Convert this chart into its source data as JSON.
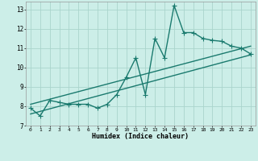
{
  "title": "",
  "xlabel": "Humidex (Indice chaleur)",
  "xlim": [
    -0.5,
    23.5
  ],
  "ylim": [
    7,
    13.4
  ],
  "yticks": [
    7,
    8,
    9,
    10,
    11,
    12,
    13
  ],
  "xticks": [
    0,
    1,
    2,
    3,
    4,
    5,
    6,
    7,
    8,
    9,
    10,
    11,
    12,
    13,
    14,
    15,
    16,
    17,
    18,
    19,
    20,
    21,
    22,
    23
  ],
  "bg_color": "#cceee8",
  "grid_color": "#aad4cc",
  "line_color": "#1a7a6e",
  "line_width": 1.0,
  "marker": "+",
  "marker_size": 4,
  "series": {
    "line1_x": [
      0,
      1,
      2,
      3,
      4,
      5,
      6,
      7,
      8,
      9,
      10,
      11,
      12,
      13,
      14,
      15,
      16,
      17,
      18,
      19,
      20,
      21,
      22,
      23
    ],
    "line1_y": [
      7.9,
      7.5,
      8.3,
      8.2,
      8.1,
      8.1,
      8.1,
      7.9,
      8.1,
      8.6,
      9.5,
      10.5,
      8.6,
      11.5,
      10.5,
      13.2,
      11.8,
      11.8,
      11.5,
      11.4,
      11.35,
      11.1,
      11.0,
      10.7
    ],
    "line2_x": [
      0,
      23
    ],
    "line2_y": [
      8.1,
      11.1
    ],
    "line3_x": [
      0,
      23
    ],
    "line3_y": [
      7.6,
      10.65
    ]
  }
}
